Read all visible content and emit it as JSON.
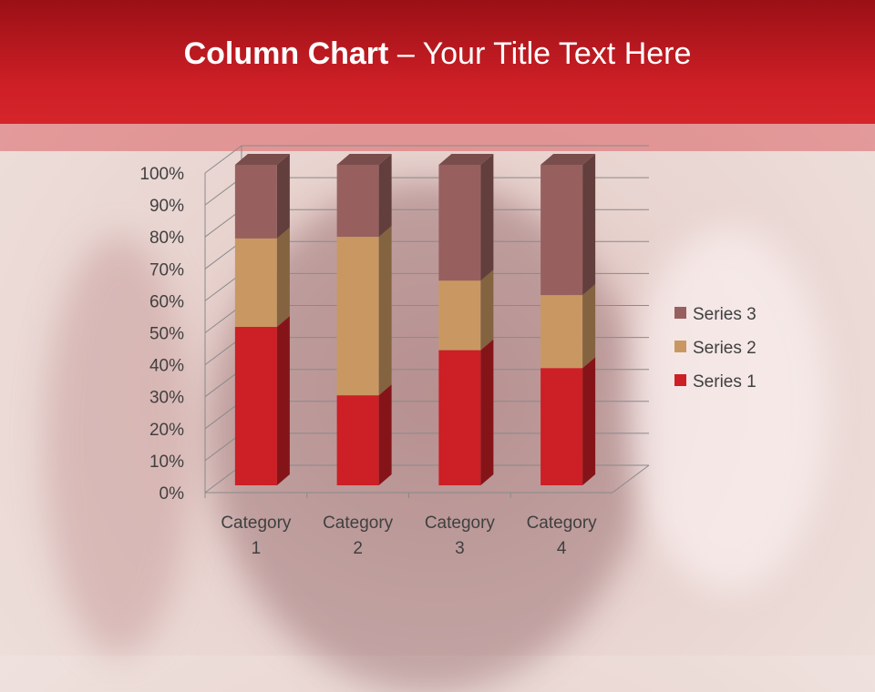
{
  "slide": {
    "title_bold": "Column Chart",
    "title_rest": " – Your Title Text Here"
  },
  "chart_data": {
    "type": "bar",
    "subtype": "100% stacked 3D column",
    "categories": [
      "Category 1",
      "Category 2",
      "Category 3",
      "Category 4"
    ],
    "series": [
      {
        "name": "Series 1",
        "values": [
          4.3,
          2.5,
          3.5,
          4.5
        ],
        "color": "#cc1f26"
      },
      {
        "name": "Series 2",
        "values": [
          2.4,
          4.4,
          1.8,
          2.8
        ],
        "color": "#c99862"
      },
      {
        "name": "Series 3",
        "values": [
          2,
          2,
          3,
          5
        ],
        "color": "#97605e"
      }
    ],
    "yticks": [
      "0%",
      "10%",
      "20%",
      "30%",
      "40%",
      "50%",
      "60%",
      "70%",
      "80%",
      "90%",
      "100%"
    ],
    "ylim": [
      0,
      100
    ],
    "grid": true,
    "legend": "right"
  }
}
